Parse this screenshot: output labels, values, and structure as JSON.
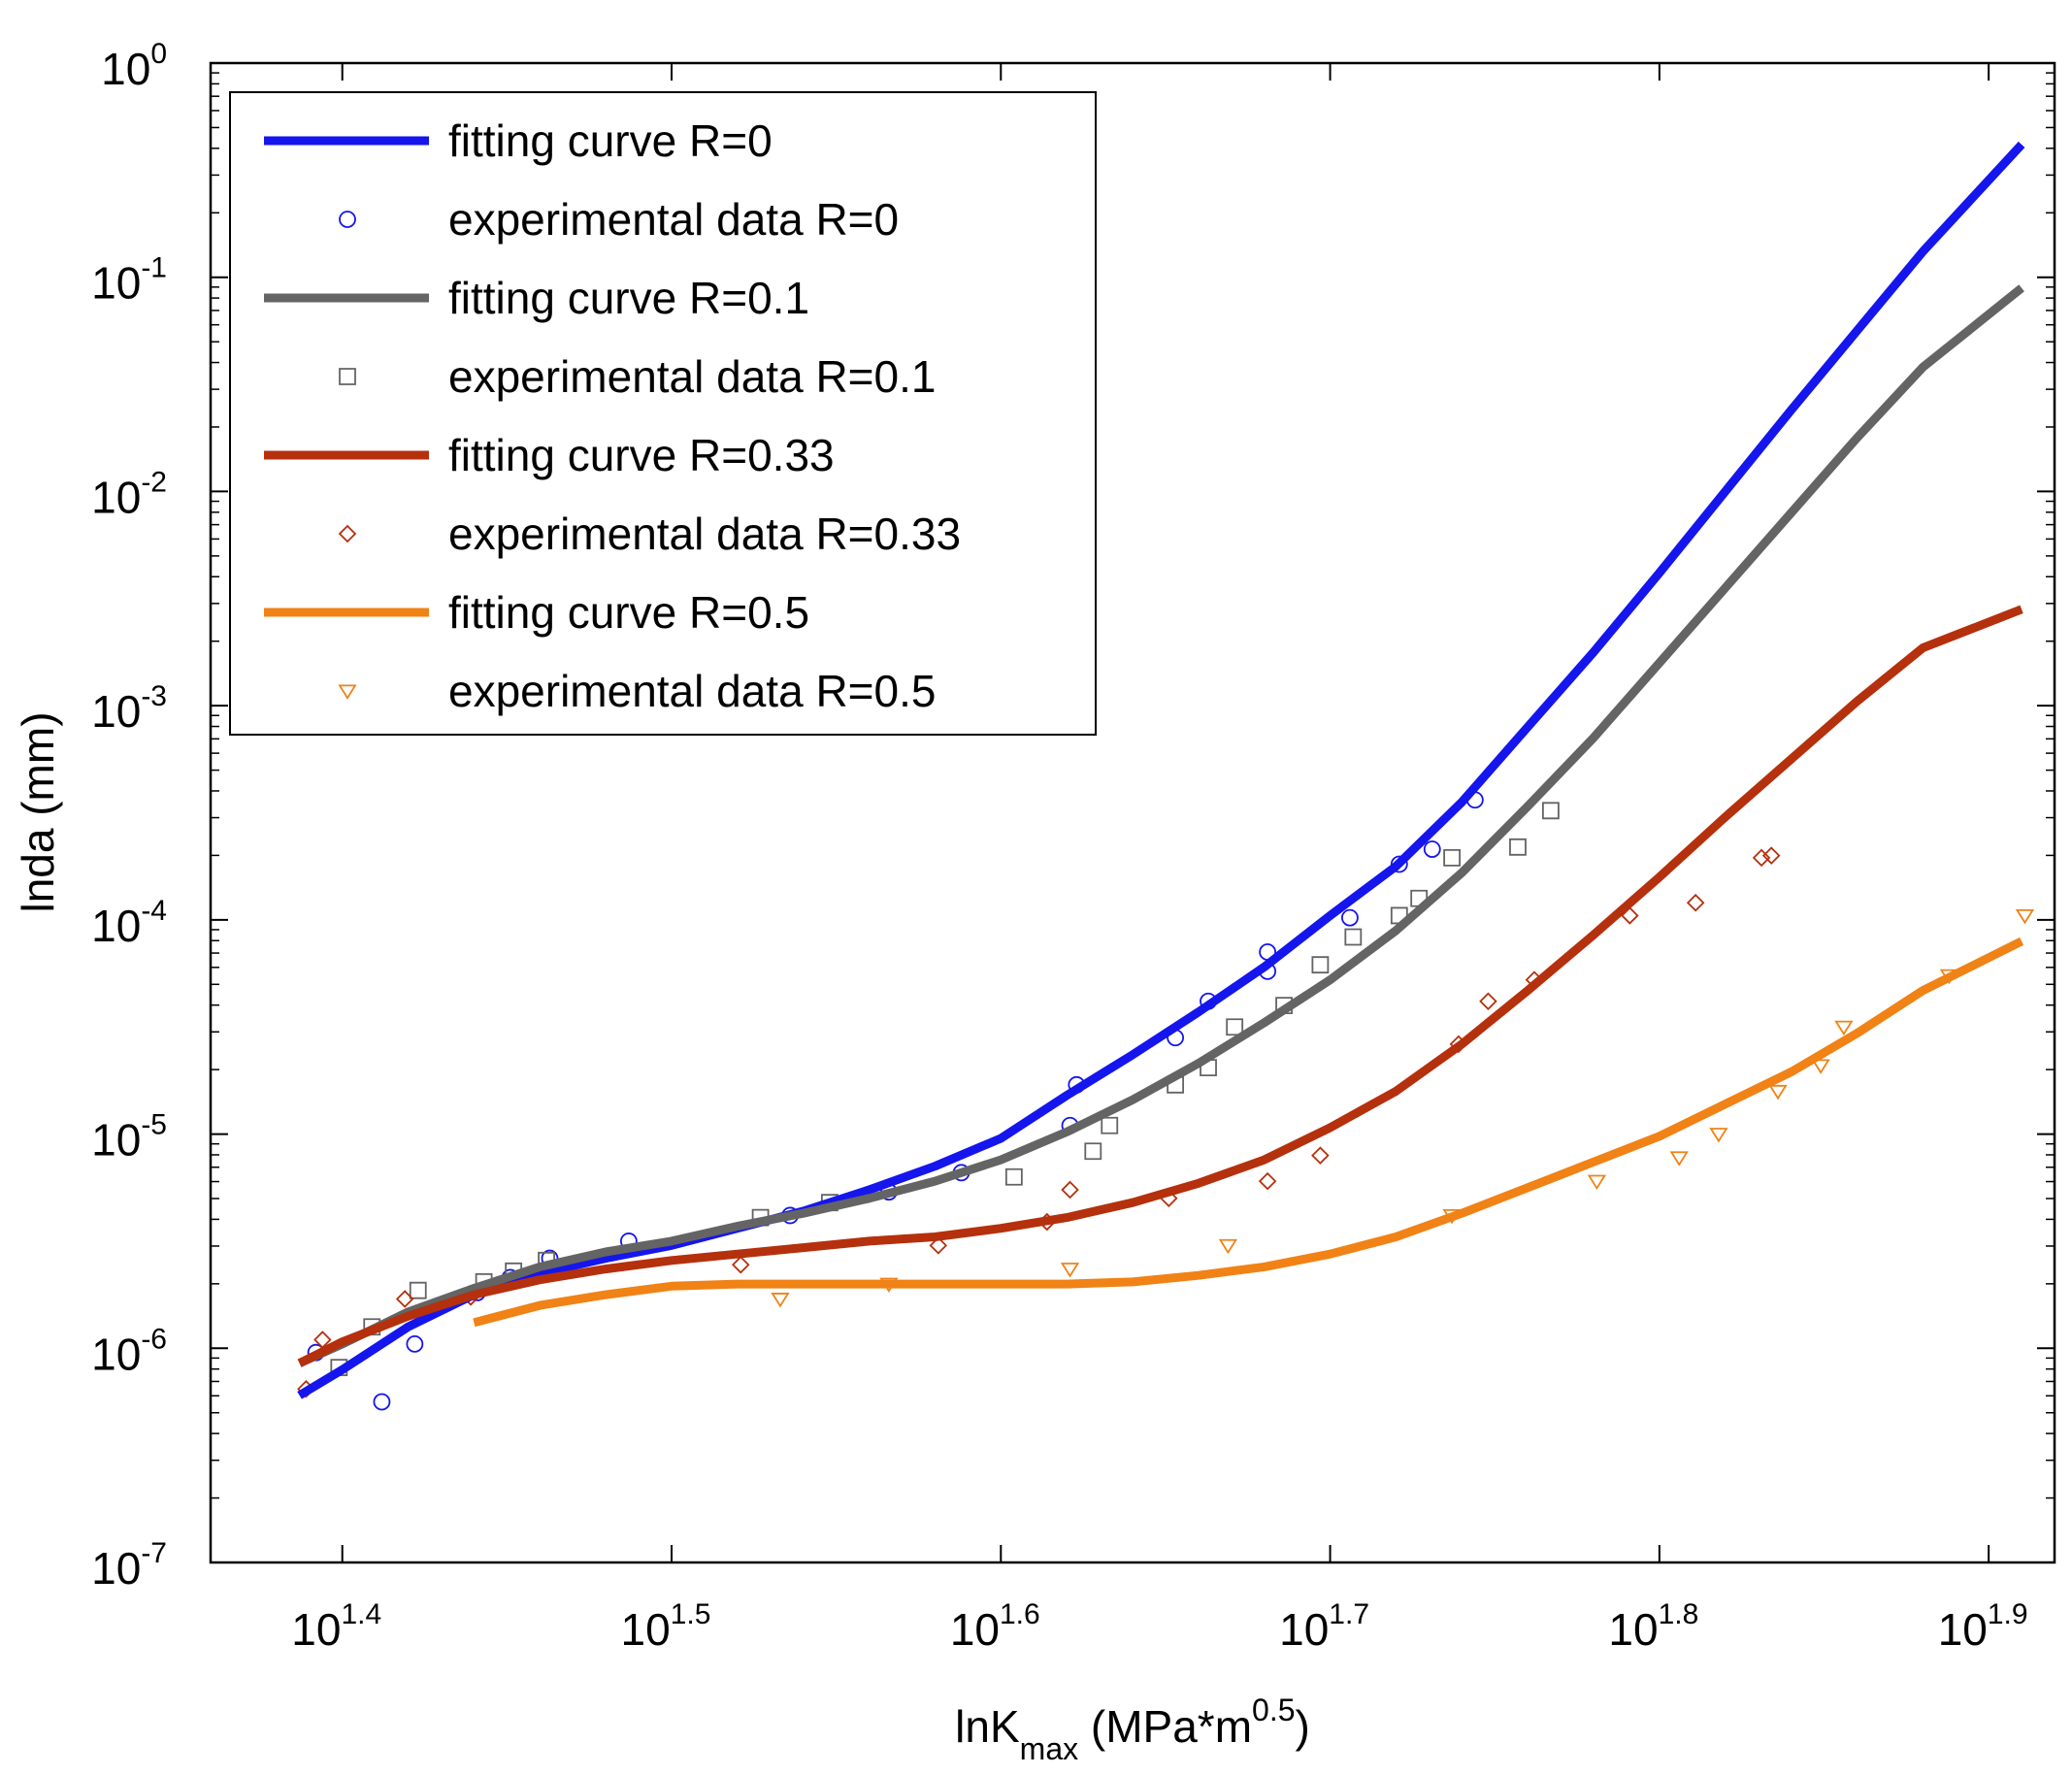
{
  "chart_data": {
    "type": "line",
    "scale": "log-log",
    "xlabel": {
      "main": "lnK",
      "sub": "max",
      "rest": " (MPa*m",
      "sup": "0.5",
      "end": ")"
    },
    "ylabel": "lnda (mm)",
    "xlim_log10": [
      1.36,
      1.92
    ],
    "ylim_log10": [
      -7,
      0
    ],
    "x_ticks": [
      {
        "base": "10",
        "exp": "1.4",
        "log10": 1.4
      },
      {
        "base": "10",
        "exp": "1.5",
        "log10": 1.5
      },
      {
        "base": "10",
        "exp": "1.6",
        "log10": 1.6
      },
      {
        "base": "10",
        "exp": "1.7",
        "log10": 1.7
      },
      {
        "base": "10",
        "exp": "1.8",
        "log10": 1.8
      },
      {
        "base": "10",
        "exp": "1.9",
        "log10": 1.9
      }
    ],
    "y_ticks": [
      {
        "base": "10",
        "exp": "0",
        "log10": 0
      },
      {
        "base": "10",
        "exp": "-1",
        "log10": -1
      },
      {
        "base": "10",
        "exp": "-2",
        "log10": -2
      },
      {
        "base": "10",
        "exp": "-3",
        "log10": -3
      },
      {
        "base": "10",
        "exp": "-4",
        "log10": -4
      },
      {
        "base": "10",
        "exp": "-5",
        "log10": -5
      },
      {
        "base": "10",
        "exp": "-6",
        "log10": -6
      },
      {
        "base": "10",
        "exp": "-7",
        "log10": -7
      }
    ],
    "legend_position": "top-left",
    "series": [
      {
        "name": "fitting curve R=0",
        "kind": "line",
        "color": "#1515ee",
        "points_log10": [
          [
            1.387,
            -6.22
          ],
          [
            1.4,
            -6.1
          ],
          [
            1.42,
            -5.9
          ],
          [
            1.44,
            -5.75
          ],
          [
            1.46,
            -5.65
          ],
          [
            1.48,
            -5.58
          ],
          [
            1.5,
            -5.52
          ],
          [
            1.52,
            -5.44
          ],
          [
            1.54,
            -5.36
          ],
          [
            1.56,
            -5.26
          ],
          [
            1.58,
            -5.15
          ],
          [
            1.6,
            -5.02
          ],
          [
            1.62,
            -4.82
          ],
          [
            1.64,
            -4.63
          ],
          [
            1.66,
            -4.43
          ],
          [
            1.68,
            -4.22
          ],
          [
            1.7,
            -3.98
          ],
          [
            1.72,
            -3.75
          ],
          [
            1.74,
            -3.45
          ],
          [
            1.76,
            -3.1
          ],
          [
            1.78,
            -2.75
          ],
          [
            1.8,
            -2.38
          ],
          [
            1.82,
            -2.0
          ],
          [
            1.84,
            -1.62
          ],
          [
            1.86,
            -1.25
          ],
          [
            1.88,
            -0.88
          ],
          [
            1.91,
            -0.38
          ]
        ]
      },
      {
        "name": "experimental data R=0",
        "kind": "marker",
        "marker": "circle",
        "color": "#1515ee",
        "points_log10": [
          [
            1.392,
            -6.02
          ],
          [
            1.412,
            -6.25
          ],
          [
            1.422,
            -5.98
          ],
          [
            1.441,
            -5.74
          ],
          [
            1.451,
            -5.67
          ],
          [
            1.463,
            -5.58
          ],
          [
            1.487,
            -5.5
          ],
          [
            1.536,
            -5.38
          ],
          [
            1.566,
            -5.27
          ],
          [
            1.588,
            -5.18
          ],
          [
            1.621,
            -4.96
          ],
          [
            1.623,
            -4.77
          ],
          [
            1.653,
            -4.55
          ],
          [
            1.663,
            -4.38
          ],
          [
            1.681,
            -4.24
          ],
          [
            1.681,
            -4.15
          ],
          [
            1.706,
            -3.99
          ],
          [
            1.721,
            -3.74
          ],
          [
            1.731,
            -3.67
          ],
          [
            1.744,
            -3.44
          ]
        ]
      },
      {
        "name": "fitting curve R=0.1",
        "kind": "line",
        "color": "#646464",
        "points_log10": [
          [
            1.387,
            -6.07
          ],
          [
            1.4,
            -5.98
          ],
          [
            1.42,
            -5.83
          ],
          [
            1.44,
            -5.72
          ],
          [
            1.46,
            -5.62
          ],
          [
            1.48,
            -5.55
          ],
          [
            1.5,
            -5.5
          ],
          [
            1.52,
            -5.43
          ],
          [
            1.54,
            -5.37
          ],
          [
            1.56,
            -5.3
          ],
          [
            1.58,
            -5.22
          ],
          [
            1.6,
            -5.12
          ],
          [
            1.62,
            -4.99
          ],
          [
            1.64,
            -4.84
          ],
          [
            1.66,
            -4.67
          ],
          [
            1.68,
            -4.48
          ],
          [
            1.7,
            -4.28
          ],
          [
            1.72,
            -4.05
          ],
          [
            1.74,
            -3.78
          ],
          [
            1.76,
            -3.47
          ],
          [
            1.78,
            -3.15
          ],
          [
            1.8,
            -2.8
          ],
          [
            1.82,
            -2.45
          ],
          [
            1.84,
            -2.1
          ],
          [
            1.86,
            -1.75
          ],
          [
            1.88,
            -1.42
          ],
          [
            1.91,
            -1.05
          ]
        ]
      },
      {
        "name": "experimental data R=0.1",
        "kind": "marker",
        "marker": "square",
        "color": "#646464",
        "points_log10": [
          [
            1.399,
            -6.09
          ],
          [
            1.409,
            -5.9
          ],
          [
            1.423,
            -5.73
          ],
          [
            1.443,
            -5.69
          ],
          [
            1.452,
            -5.64
          ],
          [
            1.462,
            -5.59
          ],
          [
            1.527,
            -5.39
          ],
          [
            1.548,
            -5.32
          ],
          [
            1.604,
            -5.2
          ],
          [
            1.628,
            -5.08
          ],
          [
            1.633,
            -4.96
          ],
          [
            1.653,
            -4.77
          ],
          [
            1.663,
            -4.69
          ],
          [
            1.671,
            -4.5
          ],
          [
            1.686,
            -4.4
          ],
          [
            1.697,
            -4.21
          ],
          [
            1.707,
            -4.08
          ],
          [
            1.721,
            -3.98
          ],
          [
            1.727,
            -3.9
          ],
          [
            1.737,
            -3.71
          ],
          [
            1.757,
            -3.66
          ],
          [
            1.767,
            -3.49
          ]
        ]
      },
      {
        "name": "fitting curve R=0.33",
        "kind": "line",
        "color": "#b5300c",
        "points_log10": [
          [
            1.387,
            -6.07
          ],
          [
            1.4,
            -5.97
          ],
          [
            1.42,
            -5.85
          ],
          [
            1.44,
            -5.75
          ],
          [
            1.46,
            -5.68
          ],
          [
            1.48,
            -5.63
          ],
          [
            1.5,
            -5.59
          ],
          [
            1.52,
            -5.56
          ],
          [
            1.54,
            -5.53
          ],
          [
            1.56,
            -5.5
          ],
          [
            1.58,
            -5.48
          ],
          [
            1.6,
            -5.44
          ],
          [
            1.62,
            -5.39
          ],
          [
            1.64,
            -5.32
          ],
          [
            1.66,
            -5.23
          ],
          [
            1.68,
            -5.12
          ],
          [
            1.7,
            -4.97
          ],
          [
            1.72,
            -4.8
          ],
          [
            1.74,
            -4.58
          ],
          [
            1.76,
            -4.33
          ],
          [
            1.78,
            -4.07
          ],
          [
            1.8,
            -3.8
          ],
          [
            1.82,
            -3.52
          ],
          [
            1.84,
            -3.25
          ],
          [
            1.86,
            -2.98
          ],
          [
            1.88,
            -2.73
          ],
          [
            1.91,
            -2.55
          ]
        ]
      },
      {
        "name": "experimental data R=0.33",
        "kind": "marker",
        "marker": "diamond",
        "color": "#b5300c",
        "points_log10": [
          [
            1.389,
            -6.19
          ],
          [
            1.394,
            -5.96
          ],
          [
            1.419,
            -5.77
          ],
          [
            1.439,
            -5.76
          ],
          [
            1.521,
            -5.61
          ],
          [
            1.581,
            -5.52
          ],
          [
            1.614,
            -5.41
          ],
          [
            1.621,
            -5.26
          ],
          [
            1.651,
            -5.3
          ],
          [
            1.681,
            -5.22
          ],
          [
            1.697,
            -5.1
          ],
          [
            1.739,
            -4.58
          ],
          [
            1.748,
            -4.38
          ],
          [
            1.762,
            -4.28
          ],
          [
            1.791,
            -3.98
          ],
          [
            1.811,
            -3.92
          ],
          [
            1.831,
            -3.71
          ],
          [
            1.834,
            -3.7
          ]
        ]
      },
      {
        "name": "fitting curve R=0.5",
        "kind": "line",
        "color": "#f08216",
        "points_log10": [
          [
            1.44,
            -5.88
          ],
          [
            1.46,
            -5.8
          ],
          [
            1.48,
            -5.75
          ],
          [
            1.5,
            -5.71
          ],
          [
            1.52,
            -5.7
          ],
          [
            1.54,
            -5.7
          ],
          [
            1.56,
            -5.7
          ],
          [
            1.58,
            -5.7
          ],
          [
            1.6,
            -5.7
          ],
          [
            1.62,
            -5.7
          ],
          [
            1.64,
            -5.69
          ],
          [
            1.66,
            -5.66
          ],
          [
            1.68,
            -5.62
          ],
          [
            1.7,
            -5.56
          ],
          [
            1.72,
            -5.48
          ],
          [
            1.74,
            -5.37
          ],
          [
            1.76,
            -5.25
          ],
          [
            1.78,
            -5.13
          ],
          [
            1.8,
            -5.01
          ],
          [
            1.82,
            -4.86
          ],
          [
            1.84,
            -4.71
          ],
          [
            1.86,
            -4.53
          ],
          [
            1.88,
            -4.33
          ],
          [
            1.91,
            -4.1
          ]
        ]
      },
      {
        "name": "experimental data R=0.5",
        "kind": "marker",
        "marker": "triangle-down",
        "color": "#f08216",
        "points_log10": [
          [
            1.533,
            -5.77
          ],
          [
            1.566,
            -5.7
          ],
          [
            1.621,
            -5.63
          ],
          [
            1.669,
            -5.52
          ],
          [
            1.737,
            -5.38
          ],
          [
            1.781,
            -5.22
          ],
          [
            1.806,
            -5.11
          ],
          [
            1.818,
            -5.0
          ],
          [
            1.836,
            -4.8
          ],
          [
            1.849,
            -4.68
          ],
          [
            1.856,
            -4.5
          ],
          [
            1.888,
            -4.26
          ],
          [
            1.911,
            -3.98
          ]
        ]
      }
    ]
  }
}
